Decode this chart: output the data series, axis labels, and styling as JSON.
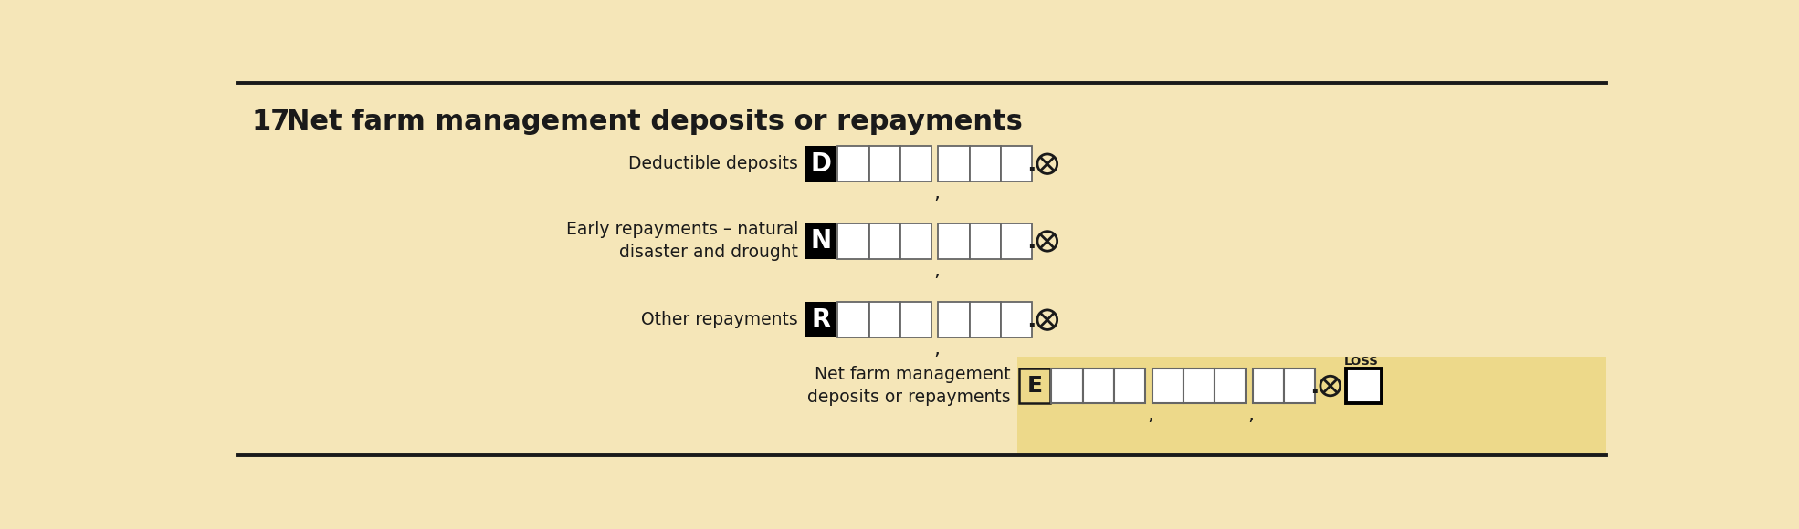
{
  "bg_color": "#f5e6b8",
  "net_panel_color": "#edd98a",
  "border_color": "#1a1a1a",
  "title_number": "17",
  "title_text": "  Net farm management deposits or repayments",
  "rows": [
    {
      "label": "Deductible deposits",
      "code": "D"
    },
    {
      "label": "Early repayments – natural\ndisaster and drought",
      "code": "N"
    },
    {
      "label": "Other repayments",
      "code": "R"
    }
  ],
  "net_label": "Net farm management\ndeposits or repayments",
  "net_code": "E",
  "bg_color_light": "#f5e6b8"
}
